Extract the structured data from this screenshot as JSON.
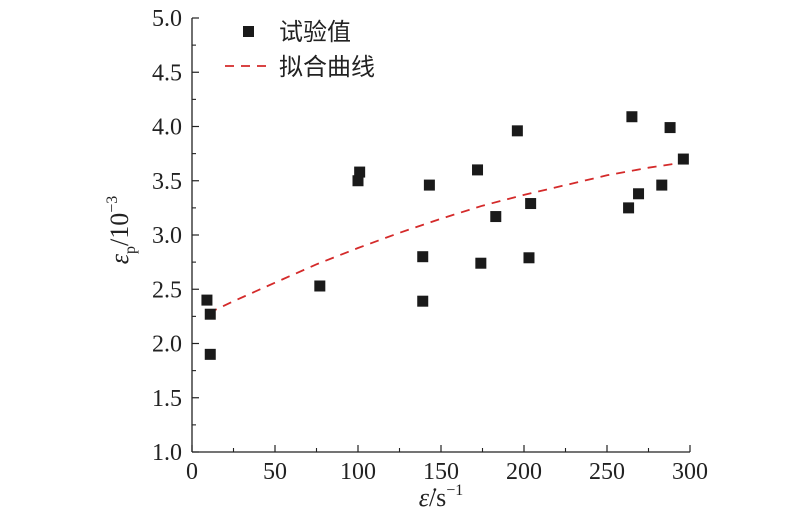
{
  "chart_data": {
    "type": "scatter",
    "xlim": [
      0,
      300
    ],
    "ylim": [
      1.0,
      5.0
    ],
    "x_ticks": [
      "0",
      "50",
      "100",
      "150",
      "200",
      "250",
      "300"
    ],
    "y_ticks": [
      "1.0",
      "1.5",
      "2.0",
      "2.5",
      "3.0",
      "3.5",
      "4.0",
      "4.5",
      "5.0"
    ],
    "xlabel": {
      "symbol": "ε̇",
      "unit": "/s",
      "exponent": "−1"
    },
    "ylabel": {
      "symbol": "ε",
      "subscript": "p",
      "unit": "/10",
      "exponent": "−3"
    },
    "legend": {
      "position": "top-left",
      "items": [
        "试验值",
        "拟合曲线"
      ]
    },
    "grid": false,
    "series": [
      {
        "name": "试验值",
        "marker": "square",
        "color": "#1a1a1a",
        "points": [
          [
            9,
            2.4
          ],
          [
            11,
            2.27
          ],
          [
            11,
            1.9
          ],
          [
            77,
            2.53
          ],
          [
            100,
            3.5
          ],
          [
            101,
            3.58
          ],
          [
            139,
            2.8
          ],
          [
            139,
            2.39
          ],
          [
            143,
            3.46
          ],
          [
            172,
            3.6
          ],
          [
            174,
            2.74
          ],
          [
            183,
            3.17
          ],
          [
            196,
            3.96
          ],
          [
            203,
            2.79
          ],
          [
            204,
            3.29
          ],
          [
            263,
            3.25
          ],
          [
            265,
            4.09
          ],
          [
            269,
            3.38
          ],
          [
            283,
            3.46
          ],
          [
            288,
            3.99
          ],
          [
            296,
            3.7
          ]
        ]
      },
      {
        "name": "拟合曲线",
        "line_style": "dashed",
        "color": "#d42a2a",
        "points": [
          [
            10,
            2.28
          ],
          [
            25,
            2.39
          ],
          [
            50,
            2.56
          ],
          [
            75,
            2.73
          ],
          [
            100,
            2.88
          ],
          [
            125,
            3.02
          ],
          [
            150,
            3.15
          ],
          [
            175,
            3.27
          ],
          [
            200,
            3.37
          ],
          [
            225,
            3.46
          ],
          [
            250,
            3.55
          ],
          [
            275,
            3.62
          ],
          [
            297,
            3.67
          ]
        ]
      }
    ]
  }
}
